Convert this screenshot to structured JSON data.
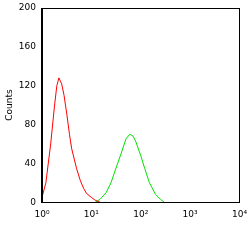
{
  "chart_data": {
    "type": "line",
    "ylabel": "Counts",
    "log": "x",
    "grid": false,
    "x": [
      1,
      1.2,
      1.5,
      1.8,
      2,
      2.2,
      2.5,
      2.8,
      3.2,
      3.6,
      4,
      5,
      6,
      7,
      8,
      10,
      12,
      15,
      20,
      25,
      30,
      40,
      50,
      60,
      70,
      80,
      100,
      120,
      150,
      200,
      250,
      300
    ],
    "series": [
      {
        "color": "#ff0000",
        "values": [
          5,
          20,
          60,
          100,
          120,
          128,
          122,
          110,
          90,
          70,
          55,
          35,
          22,
          14,
          9,
          5,
          2,
          0,
          null,
          null,
          null,
          null,
          null,
          null,
          null,
          null,
          null,
          null,
          null,
          null,
          null,
          null
        ]
      },
      {
        "color": "#00e000",
        "values": [
          null,
          null,
          null,
          null,
          null,
          null,
          null,
          null,
          null,
          null,
          null,
          null,
          null,
          null,
          null,
          null,
          0,
          3,
          10,
          20,
          32,
          50,
          65,
          70,
          68,
          62,
          48,
          35,
          20,
          8,
          3,
          0
        ]
      }
    ],
    "xlim": [
      1,
      10000
    ],
    "xticks": [
      {
        "value": 1,
        "label": "10⁰"
      },
      {
        "value": 10,
        "label": "10¹"
      },
      {
        "value": 100,
        "label": "10²"
      },
      {
        "value": 1000,
        "label": "10³"
      },
      {
        "value": 10000,
        "label": "10⁴"
      }
    ],
    "ylim": [
      0,
      200
    ],
    "yticks": [
      0,
      40,
      80,
      120,
      160,
      200
    ]
  }
}
